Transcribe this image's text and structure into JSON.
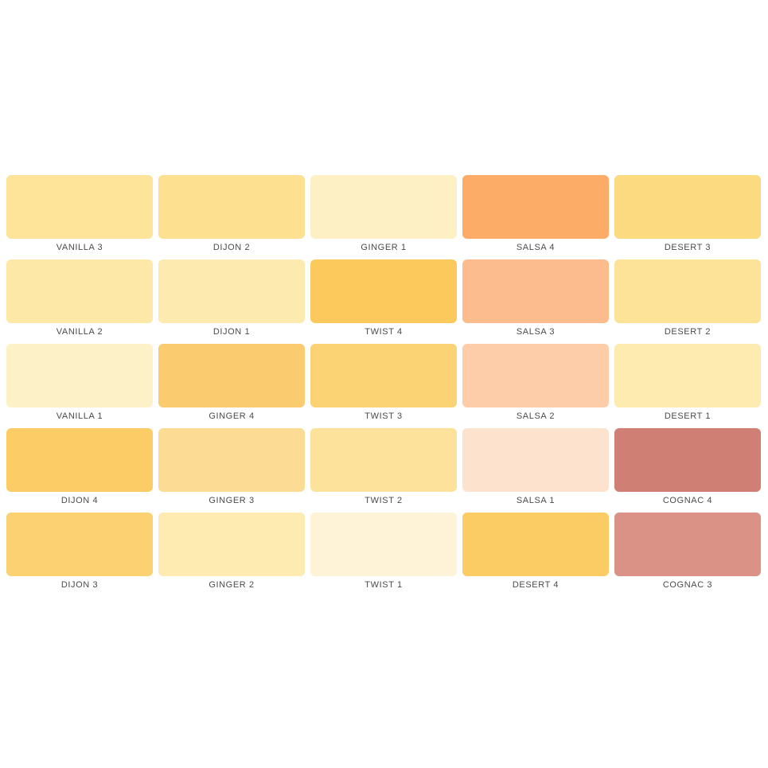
{
  "page": {
    "background": "#ffffff",
    "label_text_color": "#4a4a4a"
  },
  "palette": {
    "columns": 5,
    "swatches": [
      {
        "label": "VANILLA 3",
        "color": "#FDE499"
      },
      {
        "label": "DIJON 2",
        "color": "#FDE190"
      },
      {
        "label": "GINGER 1",
        "color": "#FDF0C4"
      },
      {
        "label": "SALSA 4",
        "color": "#FCAC66"
      },
      {
        "label": "DESERT 3",
        "color": "#FCDA80"
      },
      {
        "label": "VANILLA 2",
        "color": "#FDE8A7"
      },
      {
        "label": "DIJON 1",
        "color": "#FDEAAE"
      },
      {
        "label": "TWIST 4",
        "color": "#FBC95C"
      },
      {
        "label": "SALSA 3",
        "color": "#FCBC8D"
      },
      {
        "label": "DESERT 2",
        "color": "#FCE398"
      },
      {
        "label": "VANILLA 1",
        "color": "#FDF1C7"
      },
      {
        "label": "GINGER 4",
        "color": "#FACB6F"
      },
      {
        "label": "TWIST 3",
        "color": "#FBD375"
      },
      {
        "label": "SALSA 2",
        "color": "#FCCDA8"
      },
      {
        "label": "DESERT 1",
        "color": "#FDEBAF"
      },
      {
        "label": "DIJON 4",
        "color": "#FCCD66"
      },
      {
        "label": "GINGER 3",
        "color": "#FCDC95"
      },
      {
        "label": "TWIST 2",
        "color": "#FCE29B"
      },
      {
        "label": "SALSA 1",
        "color": "#FDE2CE"
      },
      {
        "label": "COGNAC 4",
        "color": "#D07F74"
      },
      {
        "label": "DIJON 3",
        "color": "#FBD172"
      },
      {
        "label": "GINGER 2",
        "color": "#FDEBB2"
      },
      {
        "label": "TWIST 1",
        "color": "#FEF3D6"
      },
      {
        "label": "DESERT 4",
        "color": "#FCCC64"
      },
      {
        "label": "COGNAC 3",
        "color": "#DA9186"
      }
    ]
  }
}
